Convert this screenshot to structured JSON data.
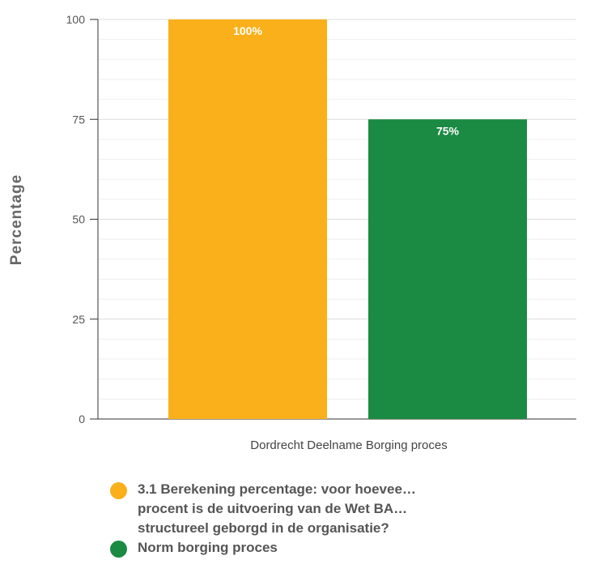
{
  "chart_data": {
    "type": "bar",
    "categories": [
      "Dordrecht Deelname Borging proces"
    ],
    "series": [
      {
        "name": "3.1 Berekening percentage: voor hoevee… procent is de uitvoering van de Wet BA… structureel geborgd in de organisatie?",
        "values": [
          100
        ],
        "color": "#F9B01B",
        "data_label": "100%"
      },
      {
        "name": "Norm borging proces",
        "values": [
          75
        ],
        "color": "#1B8A42",
        "data_label": "75%"
      }
    ],
    "ylabel": "Percentage",
    "ylim": [
      0,
      100
    ],
    "yticks": [
      0,
      25,
      50,
      75,
      100
    ],
    "grid": true,
    "legend_position": "bottom"
  },
  "legend": [
    {
      "lines": [
        "3.1 Berekening percentage: voor hoevee…",
        "procent is de uitvoering van de Wet BA…",
        "structureel geborgd in de organisatie?"
      ],
      "color": "#F9B01B"
    },
    {
      "lines": [
        "Norm borging proces"
      ],
      "color": "#1B8A42"
    }
  ]
}
